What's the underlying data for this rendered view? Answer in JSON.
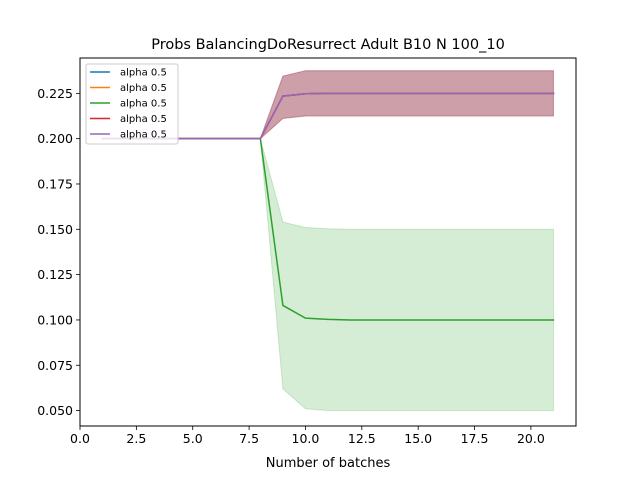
{
  "chart_data": {
    "type": "line",
    "title": "Probs BalancingDoResurrect Adult B10 N 100_10",
    "xlabel": "Number of batches",
    "ylabel": "",
    "xlim": [
      0,
      22.0
    ],
    "ylim": [
      0.0415,
      0.2445
    ],
    "xticks": [
      0.0,
      2.5,
      5.0,
      7.5,
      10.0,
      12.5,
      15.0,
      17.5,
      20.0
    ],
    "xtick_labels": [
      "0.0",
      "2.5",
      "5.0",
      "7.5",
      "10.0",
      "12.5",
      "15.0",
      "17.5",
      "20.0"
    ],
    "yticks": [
      0.05,
      0.075,
      0.1,
      0.125,
      0.15,
      0.175,
      0.2,
      0.225
    ],
    "ytick_labels": [
      "0.050",
      "0.075",
      "0.100",
      "0.125",
      "0.150",
      "0.175",
      "0.200",
      "0.225"
    ],
    "grid": false,
    "legend_position": "top-left",
    "x": [
      1,
      2,
      3,
      4,
      5,
      6,
      7,
      8,
      9,
      10,
      11,
      12,
      13,
      14,
      15,
      16,
      17,
      18,
      19,
      20,
      21
    ],
    "series": [
      {
        "name": "alpha 0.5",
        "color": "#1f77b4",
        "values": [
          0.2,
          0.2,
          0.2,
          0.2,
          0.2,
          0.2,
          0.2,
          0.2,
          0.2235,
          0.2248,
          0.225,
          0.225,
          0.225,
          0.225,
          0.225,
          0.225,
          0.225,
          0.225,
          0.225,
          0.225,
          0.225
        ],
        "band_low": [
          0.2,
          0.2,
          0.2,
          0.2,
          0.2,
          0.2,
          0.2,
          0.2,
          0.2112,
          0.2125,
          0.2125,
          0.2125,
          0.2125,
          0.2125,
          0.2125,
          0.2125,
          0.2125,
          0.2125,
          0.2125,
          0.2125,
          0.2125
        ],
        "band_high": [
          0.2,
          0.2,
          0.2,
          0.2,
          0.2,
          0.2,
          0.2,
          0.2,
          0.2345,
          0.2375,
          0.2375,
          0.2375,
          0.2375,
          0.2375,
          0.2375,
          0.2375,
          0.2375,
          0.2375,
          0.2375,
          0.2375,
          0.2375
        ]
      },
      {
        "name": "alpha 0.5",
        "color": "#ff7f0e",
        "values": [
          0.2,
          0.2,
          0.2,
          0.2,
          0.2,
          0.2,
          0.2,
          0.2,
          0.2235,
          0.2248,
          0.225,
          0.225,
          0.225,
          0.225,
          0.225,
          0.225,
          0.225,
          0.225,
          0.225,
          0.225,
          0.225
        ],
        "band_low": [
          0.2,
          0.2,
          0.2,
          0.2,
          0.2,
          0.2,
          0.2,
          0.2,
          0.2112,
          0.2125,
          0.2125,
          0.2125,
          0.2125,
          0.2125,
          0.2125,
          0.2125,
          0.2125,
          0.2125,
          0.2125,
          0.2125,
          0.2125
        ],
        "band_high": [
          0.2,
          0.2,
          0.2,
          0.2,
          0.2,
          0.2,
          0.2,
          0.2,
          0.2345,
          0.2375,
          0.2375,
          0.2375,
          0.2375,
          0.2375,
          0.2375,
          0.2375,
          0.2375,
          0.2375,
          0.2375,
          0.2375,
          0.2375
        ]
      },
      {
        "name": "alpha 0.5",
        "color": "#2ca02c",
        "values": [
          0.2,
          0.2,
          0.2,
          0.2,
          0.2,
          0.2,
          0.2,
          0.2,
          0.108,
          0.101,
          0.1003,
          0.1,
          0.1,
          0.1,
          0.1,
          0.1,
          0.1,
          0.1,
          0.1,
          0.1,
          0.1
        ],
        "band_low": [
          0.2,
          0.2,
          0.2,
          0.2,
          0.2,
          0.2,
          0.2,
          0.2,
          0.062,
          0.051,
          0.05,
          0.05,
          0.05,
          0.05,
          0.05,
          0.05,
          0.05,
          0.05,
          0.05,
          0.05,
          0.05
        ],
        "band_high": [
          0.2,
          0.2,
          0.2,
          0.2,
          0.2,
          0.2,
          0.2,
          0.2,
          0.154,
          0.151,
          0.1503,
          0.15,
          0.15,
          0.15,
          0.15,
          0.15,
          0.15,
          0.15,
          0.15,
          0.15,
          0.15
        ]
      },
      {
        "name": "alpha 0.5",
        "color": "#d62728",
        "values": [
          0.2,
          0.2,
          0.2,
          0.2,
          0.2,
          0.2,
          0.2,
          0.2,
          0.2235,
          0.2248,
          0.225,
          0.225,
          0.225,
          0.225,
          0.225,
          0.225,
          0.225,
          0.225,
          0.225,
          0.225,
          0.225
        ],
        "band_low": [
          0.2,
          0.2,
          0.2,
          0.2,
          0.2,
          0.2,
          0.2,
          0.2,
          0.2112,
          0.2125,
          0.2125,
          0.2125,
          0.2125,
          0.2125,
          0.2125,
          0.2125,
          0.2125,
          0.2125,
          0.2125,
          0.2125,
          0.2125
        ],
        "band_high": [
          0.2,
          0.2,
          0.2,
          0.2,
          0.2,
          0.2,
          0.2,
          0.2,
          0.2345,
          0.2375,
          0.2375,
          0.2375,
          0.2375,
          0.2375,
          0.2375,
          0.2375,
          0.2375,
          0.2375,
          0.2375,
          0.2375,
          0.2375
        ]
      },
      {
        "name": "alpha 0.5",
        "color": "#9467bd",
        "values": [
          0.2,
          0.2,
          0.2,
          0.2,
          0.2,
          0.2,
          0.2,
          0.2,
          0.2235,
          0.2248,
          0.225,
          0.225,
          0.225,
          0.225,
          0.225,
          0.225,
          0.225,
          0.225,
          0.225,
          0.225,
          0.225
        ],
        "band_low": [
          0.2,
          0.2,
          0.2,
          0.2,
          0.2,
          0.2,
          0.2,
          0.2,
          0.2112,
          0.2125,
          0.2125,
          0.2125,
          0.2125,
          0.2125,
          0.2125,
          0.2125,
          0.2125,
          0.2125,
          0.2125,
          0.2125,
          0.2125
        ],
        "band_high": [
          0.2,
          0.2,
          0.2,
          0.2,
          0.2,
          0.2,
          0.2,
          0.2,
          0.2345,
          0.2375,
          0.2375,
          0.2375,
          0.2375,
          0.2375,
          0.2375,
          0.2375,
          0.2375,
          0.2375,
          0.2375,
          0.2375,
          0.2375
        ]
      }
    ]
  }
}
